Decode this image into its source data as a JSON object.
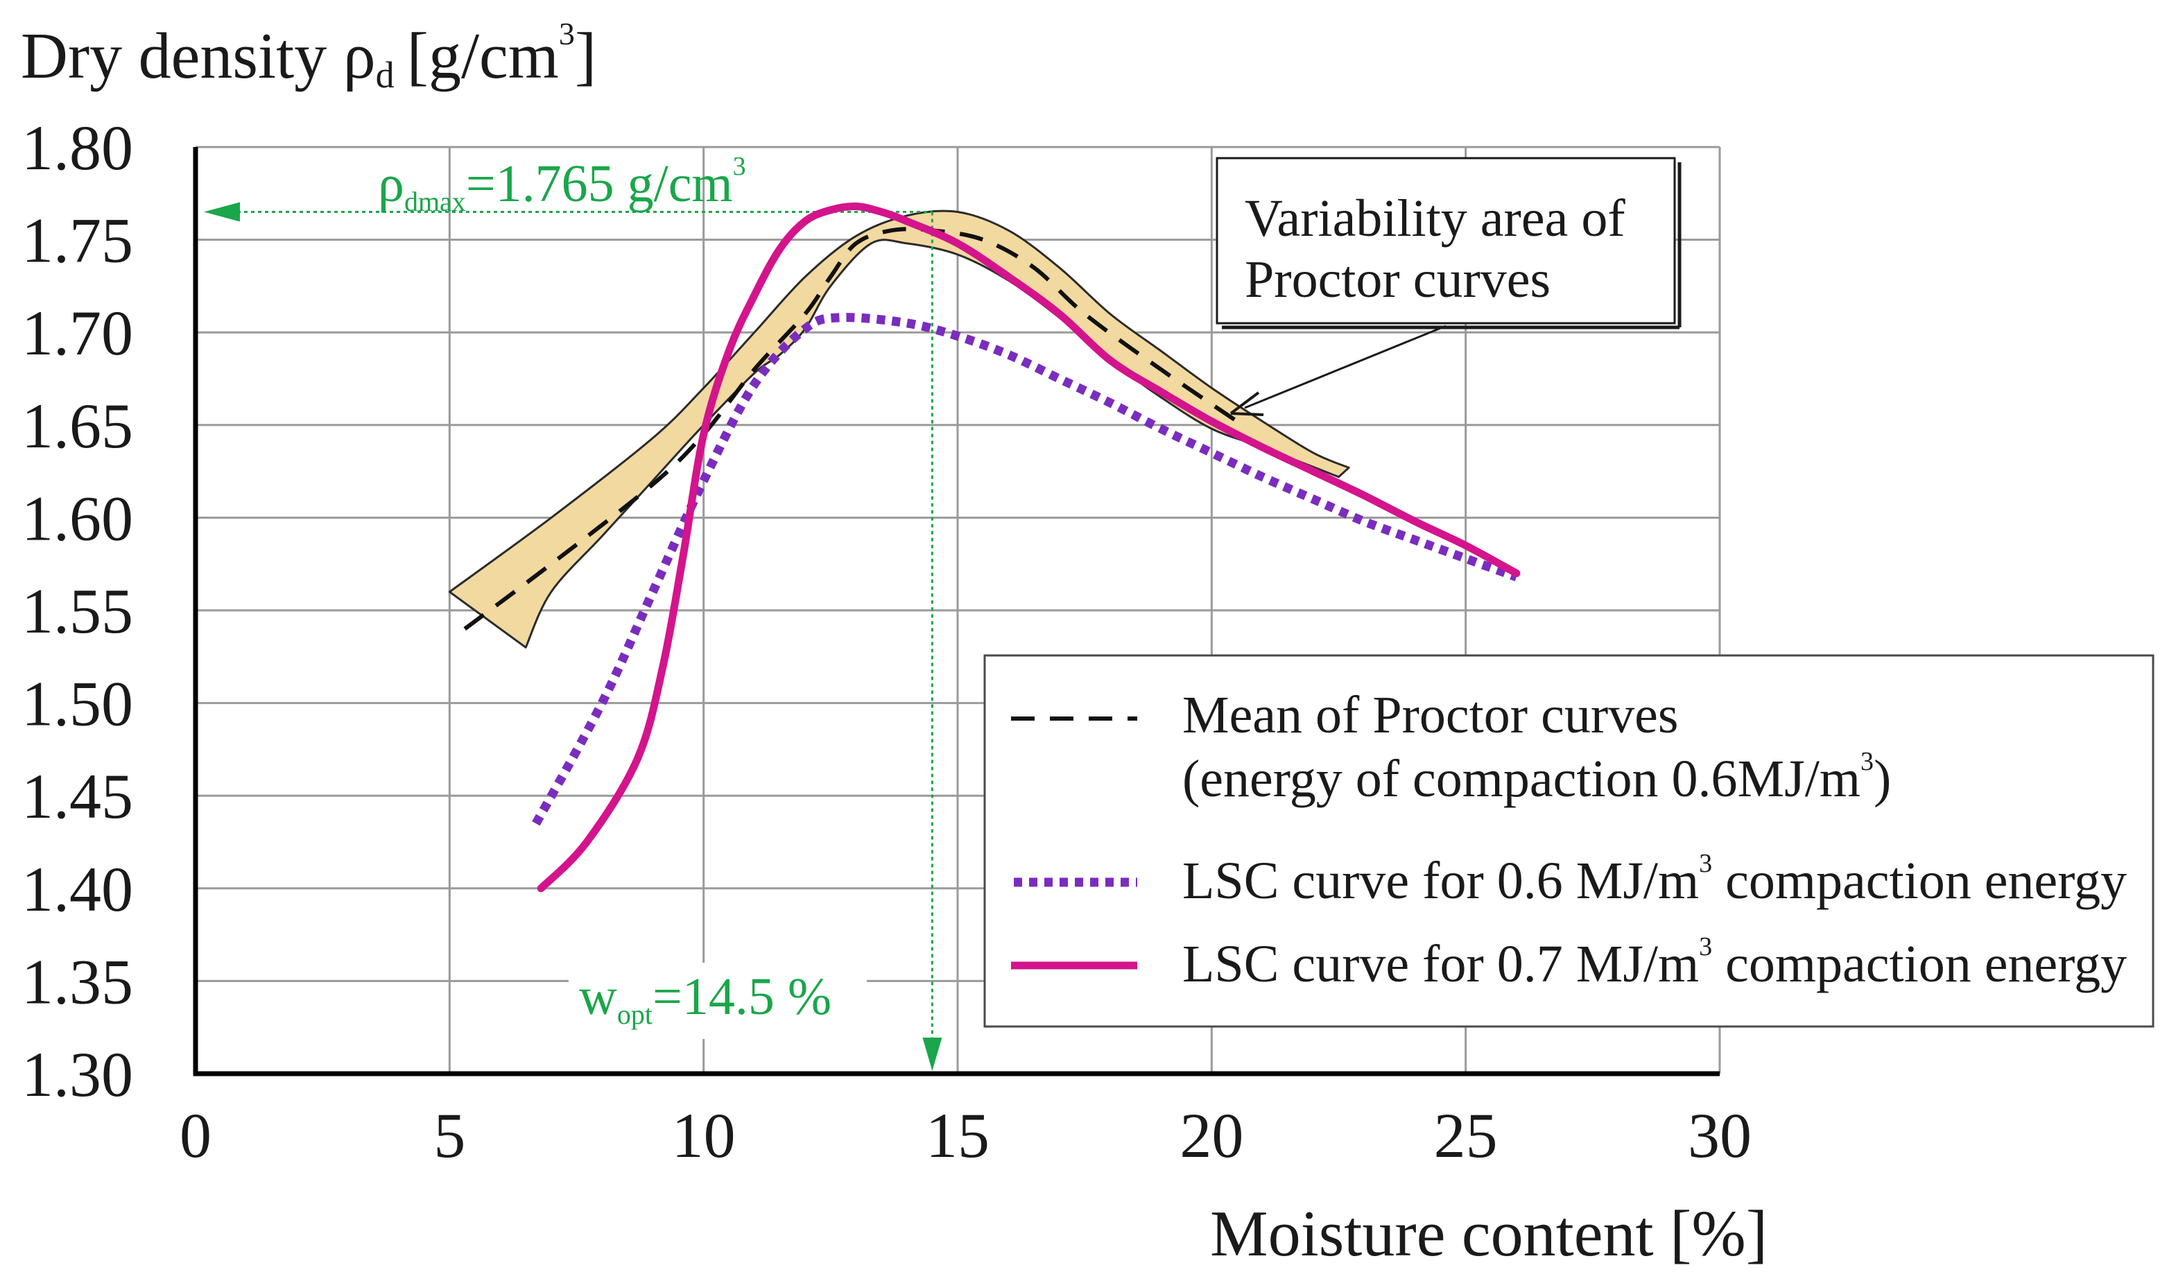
{
  "chart_data": {
    "type": "line",
    "title": "",
    "ylabel": "Dry density ρd [g/cm3]",
    "ylabel_parts": {
      "main": "Dry density ρ",
      "sub": "d",
      "unit": "[g/cm",
      "sup": "3",
      "close": "]"
    },
    "xlabel": "Moisture content [%]",
    "xlim": [
      0,
      30
    ],
    "ylim": [
      1.3,
      1.8
    ],
    "x_ticks": [
      "0",
      "5",
      "10",
      "15",
      "20",
      "25",
      "30"
    ],
    "y_ticks": [
      "1.30",
      "1.35",
      "1.40",
      "1.45",
      "1.50",
      "1.55",
      "1.60",
      "1.65",
      "1.70",
      "1.75",
      "1.80"
    ],
    "grid": true,
    "legend_position": "bottom-right",
    "band": {
      "name": "Variability area of Proctor curves",
      "upper": [
        [
          5,
          1.56
        ],
        [
          7,
          1.6
        ],
        [
          9,
          1.643
        ],
        [
          10,
          1.67
        ],
        [
          11,
          1.7
        ],
        [
          12,
          1.73
        ],
        [
          13,
          1.752
        ],
        [
          14,
          1.763
        ],
        [
          15,
          1.765
        ],
        [
          16,
          1.755
        ],
        [
          17,
          1.735
        ],
        [
          18,
          1.71
        ],
        [
          19,
          1.69
        ],
        [
          20,
          1.67
        ],
        [
          21,
          1.652
        ],
        [
          22,
          1.635
        ],
        [
          22.7,
          1.627
        ]
      ],
      "lower": [
        [
          22.5,
          1.622
        ],
        [
          21,
          1.638
        ],
        [
          20,
          1.648
        ],
        [
          19,
          1.665
        ],
        [
          18,
          1.685
        ],
        [
          17,
          1.708
        ],
        [
          16,
          1.728
        ],
        [
          15,
          1.742
        ],
        [
          14,
          1.748
        ],
        [
          13.3,
          1.748
        ],
        [
          12.5,
          1.725
        ],
        [
          12,
          1.702
        ],
        [
          11.5,
          1.688
        ],
        [
          11,
          1.678
        ],
        [
          10,
          1.65
        ],
        [
          9,
          1.62
        ],
        [
          8,
          1.59
        ],
        [
          7,
          1.56
        ],
        [
          6.5,
          1.53
        ]
      ]
    },
    "series": [
      {
        "name": "Mean of Proctor curves",
        "style": "dashed",
        "color": "#111111",
        "points": [
          [
            5.3,
            1.54
          ],
          [
            7,
            1.575
          ],
          [
            9,
            1.618
          ],
          [
            10,
            1.645
          ],
          [
            11,
            1.68
          ],
          [
            12,
            1.71
          ],
          [
            12.5,
            1.73
          ],
          [
            13,
            1.748
          ],
          [
            13.7,
            1.755
          ],
          [
            14.5,
            1.755
          ],
          [
            15.5,
            1.75
          ],
          [
            16.5,
            1.735
          ],
          [
            17.5,
            1.71
          ],
          [
            19,
            1.68
          ],
          [
            20.5,
            1.652
          ]
        ]
      },
      {
        "name": "LSC curve for 0.6 MJ/m3 compaction energy",
        "style": "dotted",
        "color": "#7a2cbf",
        "points": [
          [
            6.7,
            1.435
          ],
          [
            8,
            1.5
          ],
          [
            9,
            1.56
          ],
          [
            10,
            1.62
          ],
          [
            11,
            1.672
          ],
          [
            12,
            1.702
          ],
          [
            12.7,
            1.708
          ],
          [
            14,
            1.705
          ],
          [
            15,
            1.698
          ],
          [
            16,
            1.688
          ],
          [
            17,
            1.675
          ],
          [
            18,
            1.662
          ],
          [
            19,
            1.648
          ],
          [
            20,
            1.635
          ],
          [
            21,
            1.622
          ],
          [
            22,
            1.61
          ],
          [
            23,
            1.598
          ],
          [
            24,
            1.588
          ],
          [
            25,
            1.578
          ],
          [
            26,
            1.568
          ]
        ]
      },
      {
        "name": "LSC curve for  0.7 MJ/m3 compaction energy",
        "style": "solid",
        "color": "#d4148c",
        "points": [
          [
            6.8,
            1.4
          ],
          [
            7.7,
            1.425
          ],
          [
            8.7,
            1.47
          ],
          [
            9.2,
            1.52
          ],
          [
            9.6,
            1.58
          ],
          [
            10,
            1.645
          ],
          [
            10.5,
            1.69
          ],
          [
            11,
            1.72
          ],
          [
            11.5,
            1.745
          ],
          [
            12,
            1.76
          ],
          [
            12.5,
            1.766
          ],
          [
            13,
            1.768
          ],
          [
            13.5,
            1.765
          ],
          [
            14,
            1.76
          ],
          [
            15,
            1.748
          ],
          [
            16,
            1.73
          ],
          [
            17,
            1.71
          ],
          [
            18,
            1.685
          ],
          [
            19,
            1.668
          ],
          [
            20,
            1.652
          ],
          [
            21,
            1.638
          ],
          [
            22,
            1.625
          ],
          [
            23,
            1.612
          ],
          [
            24,
            1.598
          ],
          [
            25,
            1.585
          ],
          [
            26,
            1.57
          ]
        ]
      }
    ],
    "annotations": {
      "rho_max": {
        "label_main": "ρ",
        "label_sub": "dmax",
        "label_rest": "=1.765 g/cm",
        "label_sup": "3",
        "value": 1.765
      },
      "w_opt": {
        "label_main": "w",
        "label_sub": "opt",
        "label_rest": "=14.5 %",
        "value": 14.5
      },
      "variability_box": {
        "line1": "Variability area of",
        "line2": "Proctor curves"
      }
    },
    "legend": {
      "entries": [
        {
          "key": "mean",
          "line1": "Mean of Proctor curves",
          "line2_main": "(energy of compaction 0.6MJ/m",
          "line2_sup": "3",
          "line2_close": ")"
        },
        {
          "key": "lsc06",
          "text_main": "LSC curve for 0.6 MJ/m",
          "text_sup": "3",
          "text_rest": " compaction energy"
        },
        {
          "key": "lsc07",
          "text_main": "LSC curve for  0.7 MJ/m",
          "text_sup": "3",
          "text_rest": " compaction energy"
        }
      ]
    },
    "colors": {
      "annotation": "#1aa64a",
      "band_fill": "#f2d9a0",
      "band_stroke": "#2b2b2b",
      "grid": "#9a9a9a",
      "axis": "#000000"
    }
  }
}
